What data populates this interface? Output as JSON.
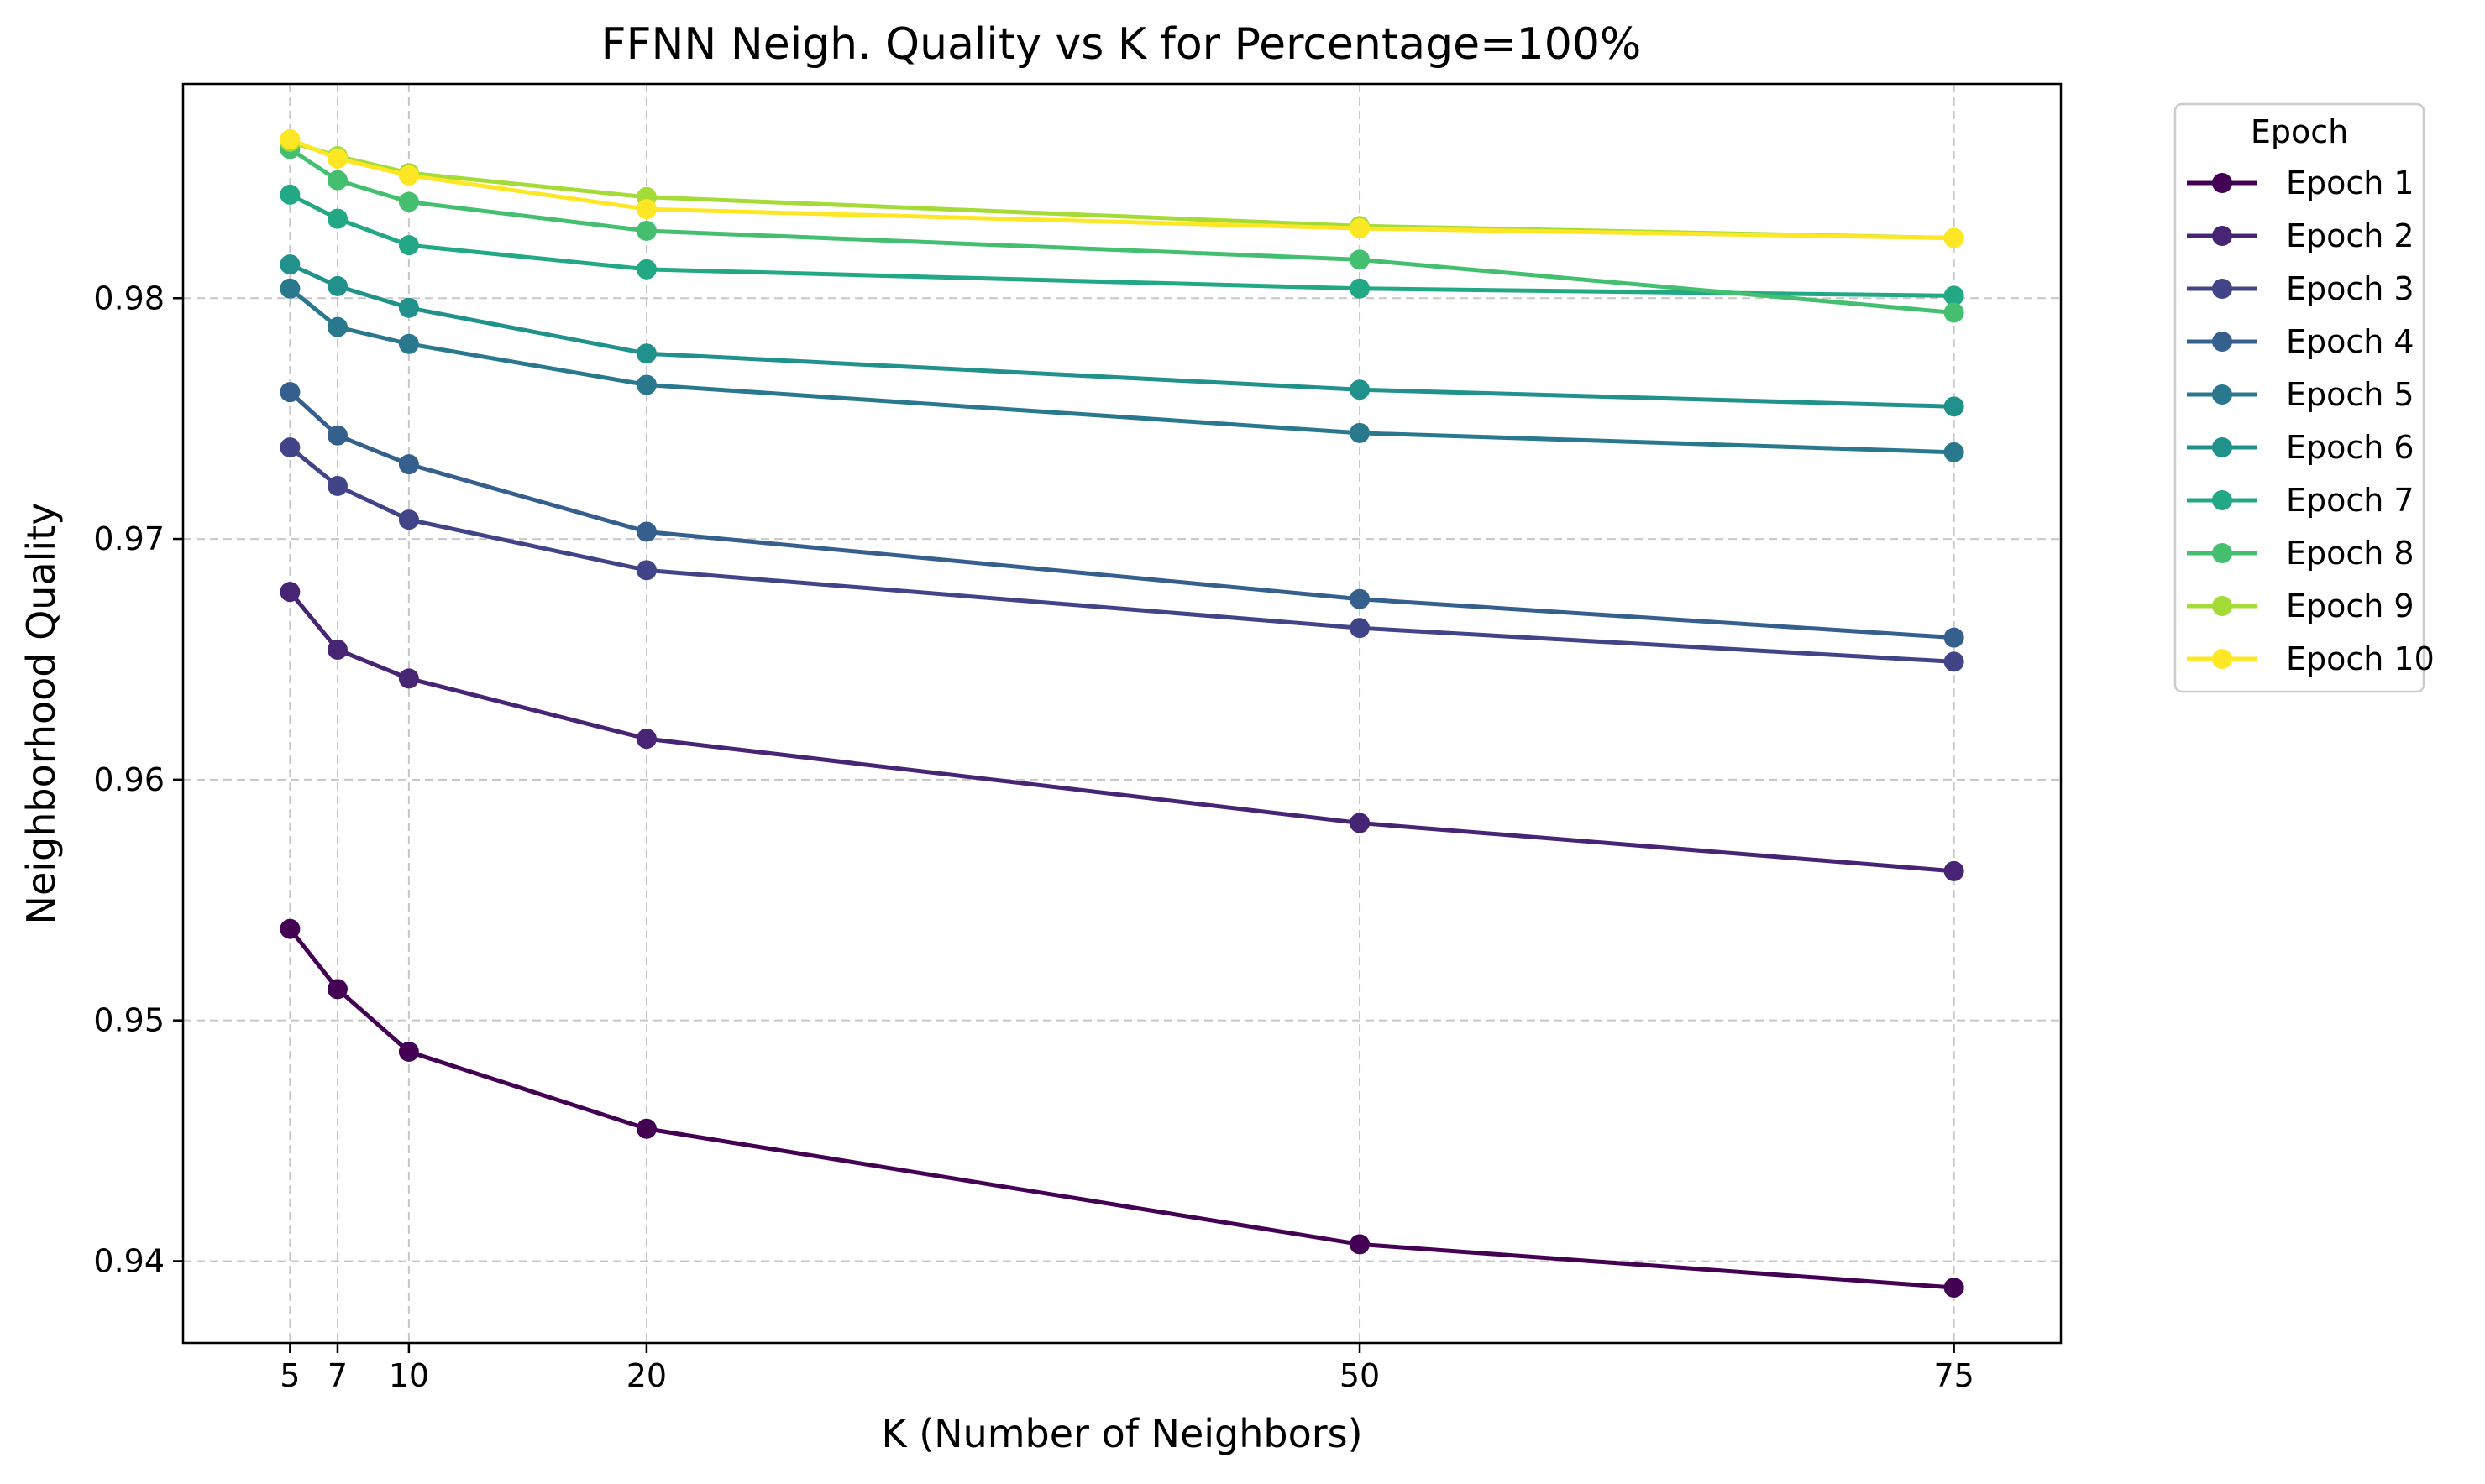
{
  "chart_data": {
    "type": "line",
    "title": "FFNN Neigh. Quality vs K for Percentage=100%",
    "xlabel": "K (Number of Neighbors)",
    "ylabel": "Neighborhood Quality",
    "x": [
      5,
      7,
      10,
      20,
      50,
      75
    ],
    "xticks": [
      "5",
      "7",
      "10",
      "20",
      "50",
      "75"
    ],
    "xlim": [
      0.5,
      79.5
    ],
    "yticks": [
      "0.94",
      "0.95",
      "0.96",
      "0.97",
      "0.98"
    ],
    "ytick_values": [
      0.94,
      0.95,
      0.96,
      0.97,
      0.98
    ],
    "ylim": [
      0.9366,
      0.9889
    ],
    "grid": true,
    "legend": {
      "title": "Epoch",
      "placement": "outside-right"
    },
    "series": [
      {
        "name": "Epoch 1",
        "color": "#440154",
        "values": [
          0.9538,
          0.9513,
          0.9487,
          0.9455,
          0.9407,
          0.9389
        ]
      },
      {
        "name": "Epoch 2",
        "color": "#482475",
        "values": [
          0.9678,
          0.9654,
          0.9642,
          0.9617,
          0.9582,
          0.9562
        ]
      },
      {
        "name": "Epoch 3",
        "color": "#414487",
        "values": [
          0.9738,
          0.9722,
          0.9708,
          0.9687,
          0.9663,
          0.9649
        ]
      },
      {
        "name": "Epoch 4",
        "color": "#355f8d",
        "values": [
          0.9761,
          0.9743,
          0.9731,
          0.9703,
          0.9675,
          0.9659
        ]
      },
      {
        "name": "Epoch 5",
        "color": "#2a788e",
        "values": [
          0.9804,
          0.9788,
          0.9781,
          0.9764,
          0.9744,
          0.9736
        ]
      },
      {
        "name": "Epoch 6",
        "color": "#21918c",
        "values": [
          0.9814,
          0.9805,
          0.9796,
          0.9777,
          0.9762,
          0.9755
        ]
      },
      {
        "name": "Epoch 7",
        "color": "#22a884",
        "values": [
          0.9843,
          0.9833,
          0.9822,
          0.9812,
          0.9804,
          0.9801
        ]
      },
      {
        "name": "Epoch 8",
        "color": "#44bf70",
        "values": [
          0.9862,
          0.9849,
          0.984,
          0.9828,
          0.9816,
          0.9794
        ]
      },
      {
        "name": "Epoch 9",
        "color": "#a5db36",
        "values": [
          0.9865,
          0.9859,
          0.9852,
          0.9842,
          0.983,
          0.9825
        ]
      },
      {
        "name": "Epoch 10",
        "color": "#fde725",
        "values": [
          0.9866,
          0.9858,
          0.9851,
          0.9837,
          0.9829,
          0.9825
        ]
      }
    ]
  }
}
